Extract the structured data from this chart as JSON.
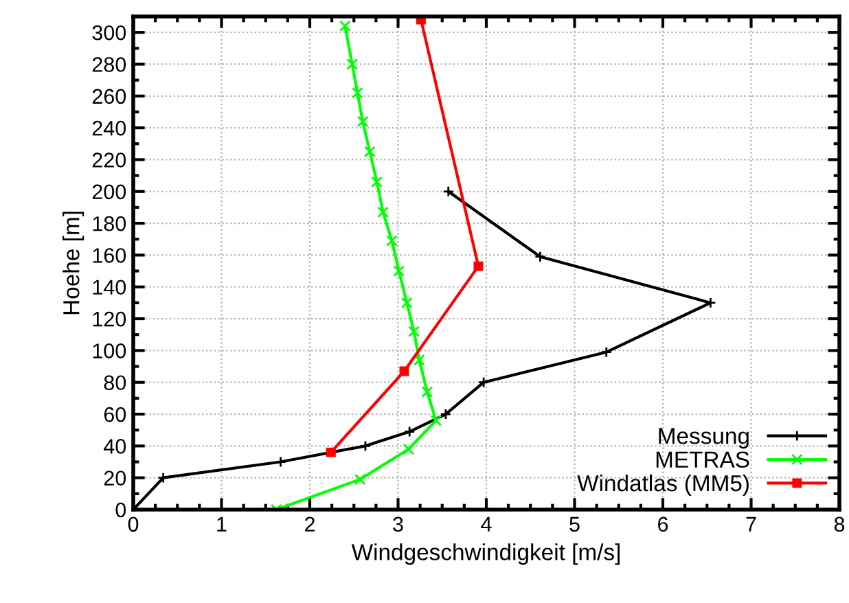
{
  "chart_data": {
    "type": "line",
    "xlabel": "Windgeschwindigkeit [m/s]",
    "ylabel": "Hoehe [m]",
    "xlim": [
      0,
      8
    ],
    "ylim": [
      0,
      310
    ],
    "xticks": [
      0,
      1,
      2,
      3,
      4,
      5,
      6,
      7,
      8
    ],
    "yticks": [
      0,
      20,
      40,
      60,
      80,
      100,
      120,
      140,
      160,
      180,
      200,
      220,
      240,
      260,
      280,
      300
    ],
    "grid": true,
    "legend": "bottom right",
    "series": [
      {
        "name": "Messung",
        "color": "#000000",
        "marker": "cross",
        "x": [
          0,
          0.34,
          1.67,
          2.63,
          3.13,
          3.54,
          3.97,
          5.36,
          6.54,
          4.61,
          3.57
        ],
        "values": [
          0,
          20,
          30,
          40,
          49,
          60,
          80,
          99,
          130,
          159,
          200
        ]
      },
      {
        "name": "METRAS",
        "color": "#00ff00",
        "marker": "cross",
        "x": [
          1.62,
          2.57,
          3.12,
          3.43,
          3.33,
          3.24,
          3.18,
          3.1,
          3.01,
          2.93,
          2.83,
          2.76,
          2.68,
          2.6,
          2.54,
          2.48,
          2.4
        ],
        "values": [
          0,
          19,
          38,
          56,
          74,
          94,
          112,
          130,
          150,
          169,
          187,
          206,
          225,
          244,
          262,
          280,
          304
        ]
      },
      {
        "name": "Windatlas (MM5)",
        "color": "#ff0000",
        "marker": "square",
        "x": [
          2.24,
          3.07,
          3.91,
          3.26
        ],
        "values": [
          36,
          87,
          153,
          308
        ]
      }
    ]
  }
}
